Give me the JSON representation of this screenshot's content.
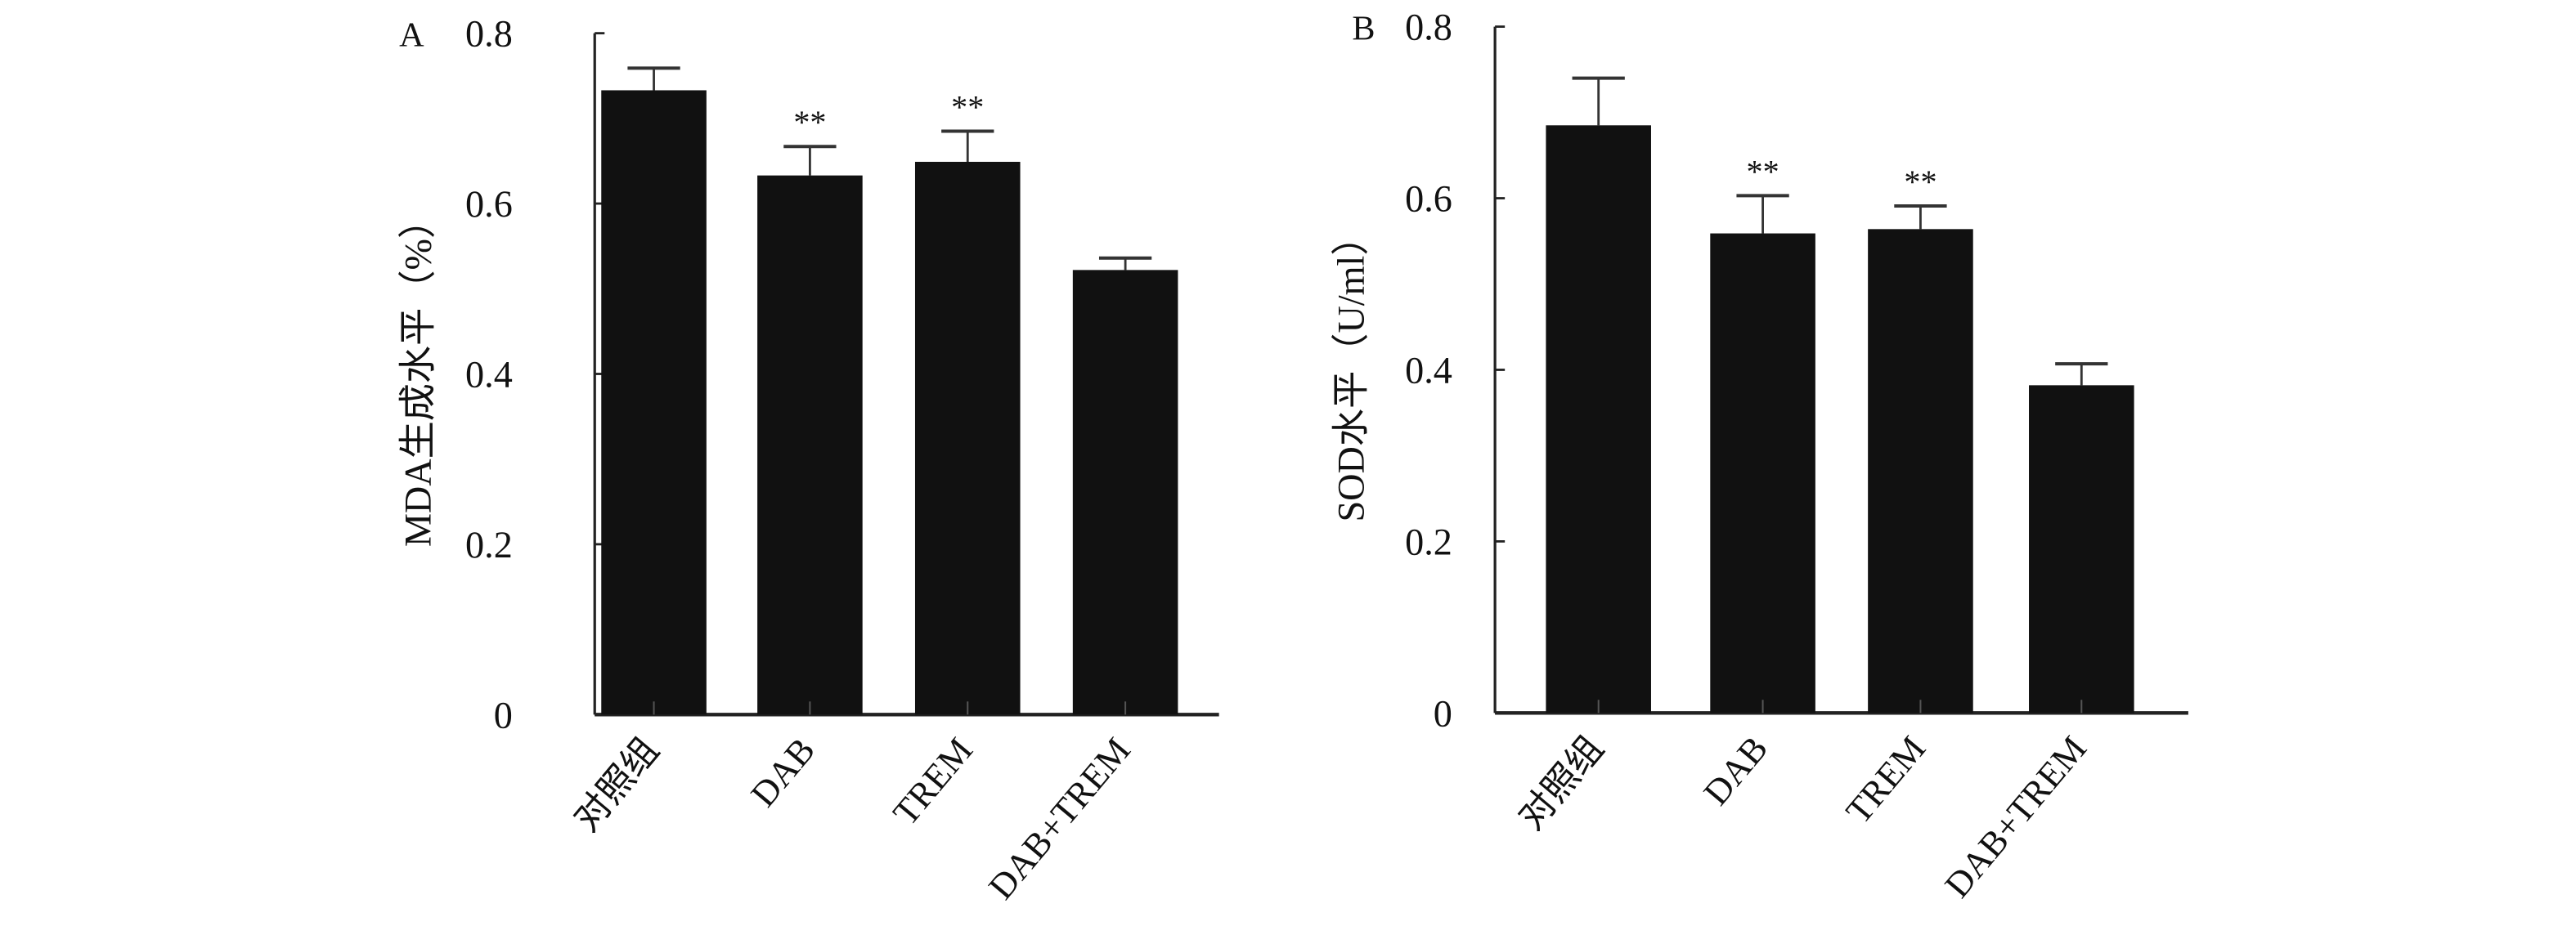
{
  "chart_data": [
    {
      "type": "bar",
      "panel_label": "A",
      "title": "",
      "xlabel": "",
      "ylabel": "MDA生成水平（%）",
      "categories": [
        "对照组",
        "DAB",
        "TREM",
        "DAB+TREM"
      ],
      "values": [
        0.733,
        0.633,
        0.649,
        0.522
      ],
      "error": [
        0.026,
        0.034,
        0.036,
        0.014
      ],
      "annotations": [
        "",
        "**",
        "**",
        ""
      ],
      "ylim": [
        0,
        0.8
      ],
      "yticks": [
        "0",
        "0.2",
        "0.4",
        "0.6",
        "0.8"
      ],
      "grid": false,
      "bar_color": "#111111"
    },
    {
      "type": "bar",
      "panel_label": "B",
      "title": "",
      "xlabel": "",
      "ylabel": "SOD水平（U/ml）",
      "categories": [
        "对照组",
        "DAB",
        "TREM",
        "DAB+TREM"
      ],
      "values": [
        0.685,
        0.559,
        0.564,
        0.382
      ],
      "error": [
        0.055,
        0.044,
        0.027,
        0.025
      ],
      "annotations": [
        "",
        "**",
        "**",
        ""
      ],
      "ylim": [
        0,
        0.8
      ],
      "yticks": [
        "0",
        "0.2",
        "0.4",
        "0.6",
        "0.8"
      ],
      "grid": false,
      "bar_color": "#111111"
    }
  ]
}
